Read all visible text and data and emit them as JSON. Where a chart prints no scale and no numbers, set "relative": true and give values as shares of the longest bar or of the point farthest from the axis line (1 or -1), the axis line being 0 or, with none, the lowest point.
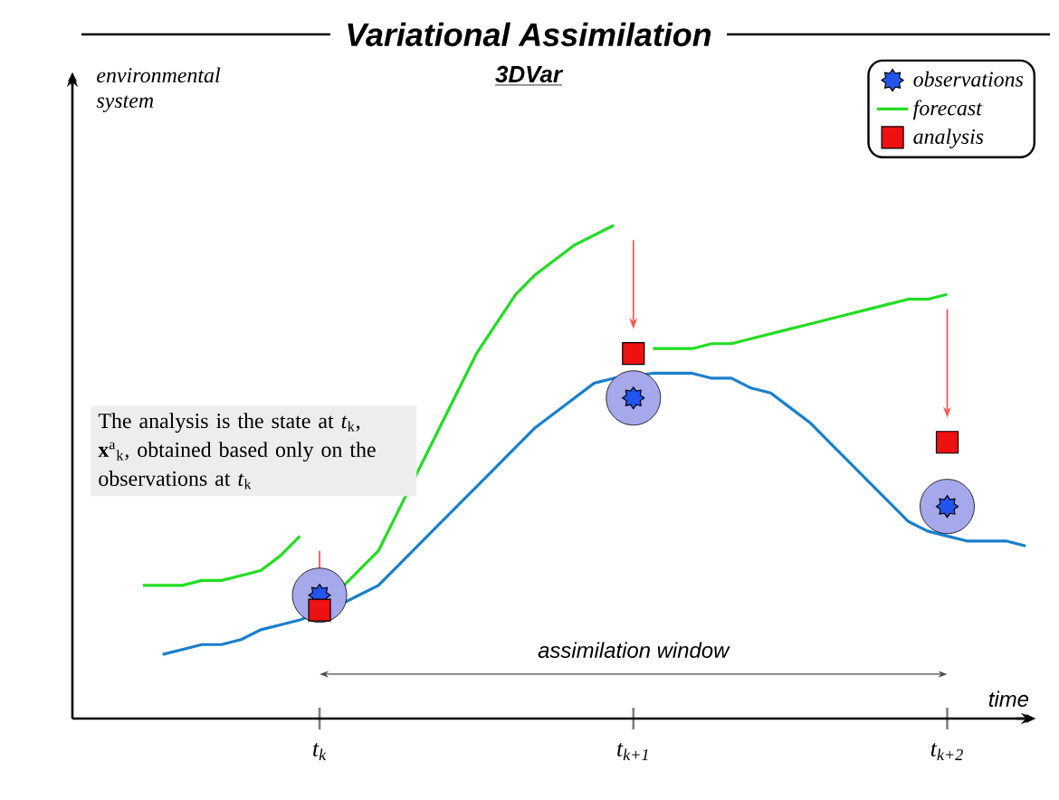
{
  "chart_data": {
    "type": "line",
    "title": "Variational Assimilation",
    "subtitle": "3DVar",
    "xlabel": "time",
    "relative": true,
    "categories": [
      null,
      null,
      null,
      null,
      null,
      null,
      null,
      null,
      null,
      null,
      null,
      null,
      "t$_{k}$",
      null,
      null,
      null,
      null,
      null,
      null,
      null,
      null,
      null,
      null,
      null,
      null,
      null,
      null,
      null,
      "t$_{k+1}$",
      null,
      null,
      null,
      null,
      null,
      null,
      null,
      null,
      null,
      null,
      null,
      null,
      null,
      null,
      null,
      "t$_{k+2}$",
      null,
      null,
      null,
      null
    ],
    "legend": "top right",
    "annotations": [
      "The analysis is the state at *t*$_{k}$, **x**$^{a}$$_{k}$, obtained based only on the observations at *t*$_{k}$",
      "assimilation window",
      "environmental system"
    ],
    "series": [
      {
        "name": "observations",
        "type": "scatter",
        "marker": "star",
        "color": "#2255ee",
        "values": [
          null,
          null,
          null,
          null,
          null,
          null,
          null,
          null,
          null,
          null,
          null,
          null,
          0.25,
          null,
          null,
          null,
          null,
          null,
          null,
          null,
          null,
          null,
          null,
          null,
          null,
          null,
          null,
          null,
          0.65,
          null,
          null,
          null,
          null,
          null,
          null,
          null,
          null,
          null,
          null,
          null,
          null,
          null,
          null,
          null,
          0.43,
          null,
          null,
          null,
          null
        ]
      },
      {
        "name": "forecast",
        "color": "#22dd22",
        "values": [
          null,
          null,
          null,
          0.27,
          0.27,
          0.27,
          0.28,
          0.28,
          0.29,
          0.3,
          0.33,
          0.37,
          null,
          0.26,
          0.3,
          0.34,
          0.42,
          0.5,
          0.58,
          0.66,
          0.74,
          0.8,
          0.86,
          0.9,
          0.93,
          0.96,
          0.98,
          1.0,
          null,
          0.75,
          0.75,
          0.75,
          0.76,
          0.76,
          0.77,
          0.78,
          0.79,
          0.8,
          0.81,
          0.82,
          0.83,
          0.84,
          0.85,
          0.85,
          0.86,
          null,
          null,
          null,
          null
        ]
      },
      {
        "name": "analysis",
        "type": "scatter",
        "marker": "square",
        "color": "#ee1111",
        "values": [
          null,
          null,
          null,
          null,
          null,
          null,
          null,
          null,
          null,
          null,
          null,
          null,
          0.22,
          null,
          null,
          null,
          null,
          null,
          null,
          null,
          null,
          null,
          null,
          null,
          null,
          null,
          null,
          null,
          0.74,
          null,
          null,
          null,
          null,
          null,
          null,
          null,
          null,
          null,
          null,
          null,
          null,
          null,
          null,
          null,
          0.56,
          null,
          null,
          null,
          null
        ]
      },
      {
        "color": "#1a7fcc",
        "values": [
          null,
          null,
          null,
          null,
          0.13,
          0.14,
          0.15,
          0.15,
          0.16,
          0.18,
          0.19,
          0.2,
          null,
          0.23,
          0.25,
          0.27,
          0.31,
          0.35,
          0.39,
          0.43,
          0.47,
          0.51,
          0.55,
          0.59,
          0.62,
          0.65,
          0.68,
          0.69,
          null,
          0.7,
          0.7,
          0.7,
          0.69,
          0.69,
          0.67,
          0.66,
          0.63,
          0.6,
          0.56,
          0.52,
          0.48,
          0.44,
          0.4,
          0.38,
          0.37,
          0.36,
          0.36,
          0.36,
          0.35
        ]
      }
    ]
  }
}
